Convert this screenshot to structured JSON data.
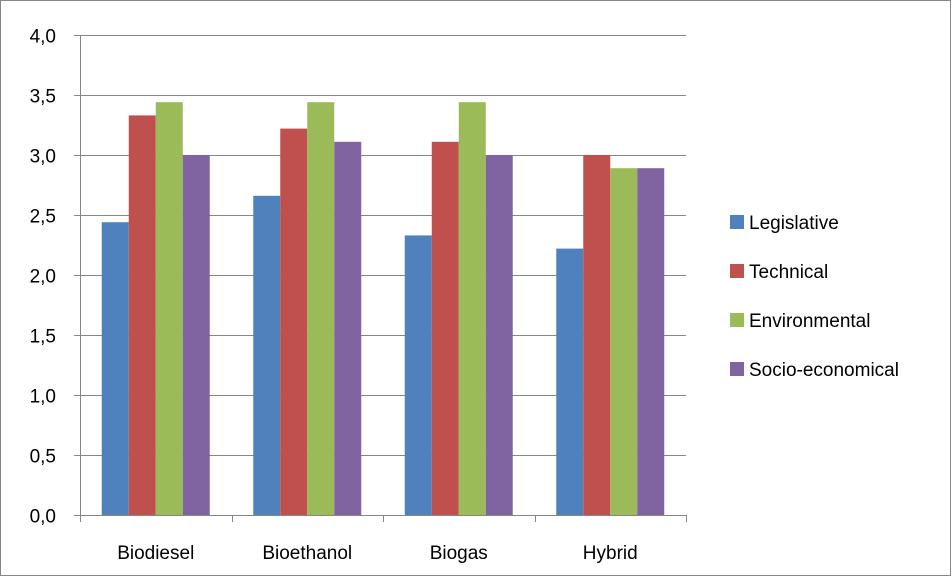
{
  "chart_data": {
    "type": "bar",
    "title": "",
    "xlabel": "",
    "ylabel": "",
    "categories": [
      "Biodiesel",
      "Bioethanol",
      "Biogas",
      "Hybrid"
    ],
    "ylim": [
      0,
      4
    ],
    "y_ticks": [
      "0,0",
      "0,5",
      "1,0",
      "1,5",
      "2,0",
      "2,5",
      "3,0",
      "3,5",
      "4,0"
    ],
    "grid": true,
    "legend_position": "right",
    "series": [
      {
        "name": "Legislative",
        "color": "#4f81bd",
        "values": [
          2.44,
          2.66,
          2.33,
          2.22
        ]
      },
      {
        "name": "Technical",
        "color": "#c0504d",
        "values": [
          3.33,
          3.22,
          3.11,
          3.0
        ]
      },
      {
        "name": "Environmental",
        "color": "#9bbb59",
        "values": [
          3.44,
          3.44,
          3.44,
          2.89
        ]
      },
      {
        "name": "Socio-economical",
        "color": "#8064a2",
        "values": [
          3.0,
          3.11,
          3.0,
          2.89
        ]
      }
    ]
  }
}
